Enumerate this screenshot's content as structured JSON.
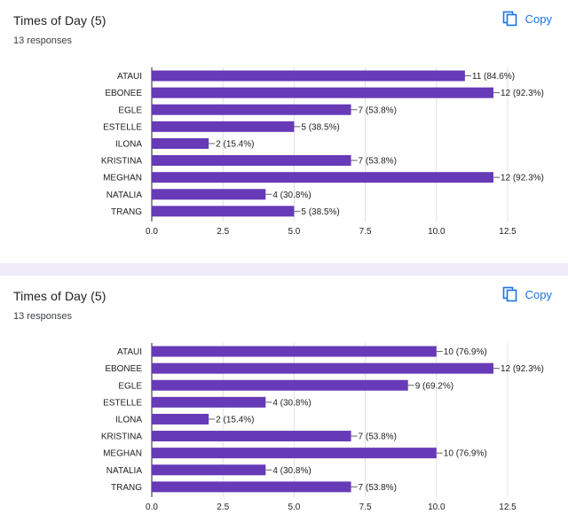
{
  "colors": {
    "bar": "#673ab7",
    "accent": "#1a73e8",
    "grid": "#e0e0e0",
    "axis": "#202124"
  },
  "cards": [
    {
      "title": "Times of Day (5)",
      "responses": "13 responses",
      "copy_label": "Copy",
      "copy_icon": "copy-icon"
    },
    {
      "title": "Times of Day (5)",
      "responses": "13 responses",
      "copy_label": "Copy",
      "copy_icon": "copy-icon"
    }
  ],
  "chart_data": [
    {
      "type": "bar",
      "orientation": "horizontal",
      "categories": [
        "ATAUI",
        "EBONEE",
        "EGLE",
        "ESTELLE",
        "ILONA",
        "KRISTINA",
        "MEGHAN",
        "NATALIA",
        "TRANG"
      ],
      "values": [
        11,
        12,
        7,
        5,
        2,
        7,
        12,
        4,
        5
      ],
      "data_labels": [
        "11 (84.6%)",
        "12 (92.3%)",
        "7 (53.8%)",
        "5 (38.5%)",
        "2 (15.4%)",
        "7 (53.8%)",
        "12 (92.3%)",
        "4 (30.8%)",
        "5 (38.5%)"
      ],
      "xlim": [
        0,
        12.5
      ],
      "xticks": [
        "0.0",
        "2.5",
        "5.0",
        "7.5",
        "10.0",
        "12.5"
      ],
      "grid": true
    },
    {
      "type": "bar",
      "orientation": "horizontal",
      "categories": [
        "ATAUI",
        "EBONEE",
        "EGLE",
        "ESTELLE",
        "ILONA",
        "KRISTINA",
        "MEGHAN",
        "NATALIA",
        "TRANG"
      ],
      "values": [
        10,
        12,
        9,
        4,
        2,
        7,
        10,
        4,
        7
      ],
      "data_labels": [
        "10 (76.9%)",
        "12 (92.3%)",
        "9 (69.2%)",
        "4 (30.8%)",
        "2 (15.4%)",
        "7 (53.8%)",
        "10 (76.9%)",
        "4 (30.8%)",
        "7 (53.8%)"
      ],
      "xlim": [
        0,
        12.5
      ],
      "xticks": [
        "0.0",
        "2.5",
        "5.0",
        "7.5",
        "10.0",
        "12.5"
      ],
      "grid": true
    }
  ]
}
